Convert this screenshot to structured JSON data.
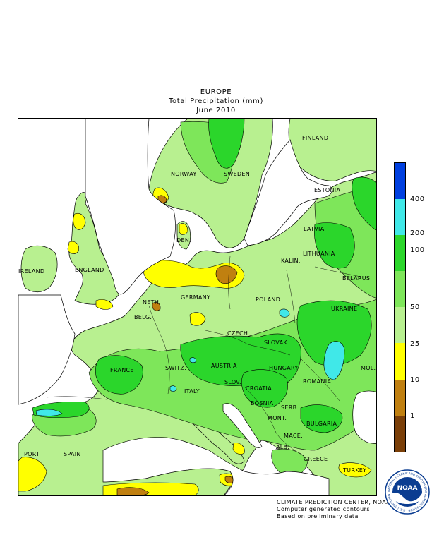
{
  "titles": {
    "region": "EUROPE",
    "variable": "Total Precipitation (mm)",
    "period": "June 2010"
  },
  "colors": {
    "very_dry": "#7a3f08",
    "dry": "#c08010",
    "yellow": "#ffff00",
    "light_green": "#b8f090",
    "medium_green": "#7ee65a",
    "green": "#2bd62b",
    "cyan": "#40e8e8",
    "blue": "#0040e0",
    "water": "#ffffff"
  },
  "countries": {
    "finland": "FINLAND",
    "norway": "NORWAY",
    "sweden": "SWEDEN",
    "estonia": "ESTONIA",
    "latvia": "LATVIA",
    "denmark": "DEN.",
    "lithuania": "LITHUANIA",
    "kalin": "KALIN.",
    "belarus": "BELARUS",
    "ireland": "IRELAND",
    "england": "ENGLAND",
    "germany": "GERMANY",
    "neth": "NETH.",
    "poland": "POLAND",
    "belg": "BELG.",
    "czech": "CZECH.",
    "ukraine": "UKRAINE",
    "slovak": "SLOVAK",
    "france": "FRANCE",
    "switz": "SWITZ.",
    "austria": "AUSTRIA",
    "hungary": "HUNGARY",
    "mol": "MOL.",
    "romania": "ROMANIA",
    "italy": "ITALY",
    "slov": "SLOV.",
    "croatia": "CROATIA",
    "bosnia": "BOSNIA",
    "serb": "SERB.",
    "mont": "MONT.",
    "bulgaria": "BULGARIA",
    "mace": "MACE.",
    "port": "PORT.",
    "spain": "SPAIN",
    "alb": "ALB.",
    "greece": "GREECE",
    "turkey": "TURKEY"
  },
  "legend": {
    "ticks": [
      "400",
      "200",
      "100",
      "50",
      "25",
      "10",
      "1"
    ],
    "bins": [
      {
        "color": "#0040e0"
      },
      {
        "color": "#40e8e8"
      },
      {
        "color": "#2bd62b"
      },
      {
        "color": "#7ee65a"
      },
      {
        "color": "#b8f090"
      },
      {
        "color": "#ffff00"
      },
      {
        "color": "#c08010"
      },
      {
        "color": "#7a3f08"
      }
    ]
  },
  "footer": {
    "line1": "CLIMATE PREDICTION CENTER, NOAA",
    "line2": "Computer generated contours",
    "line3": "Based on preliminary data"
  },
  "logo": {
    "text": "NOAA",
    "ring_text": "NATIONAL OCEANIC AND ATMOSPHERIC ADMINISTRATION · U.S. DEPARTMENT OF COMMERCE"
  }
}
